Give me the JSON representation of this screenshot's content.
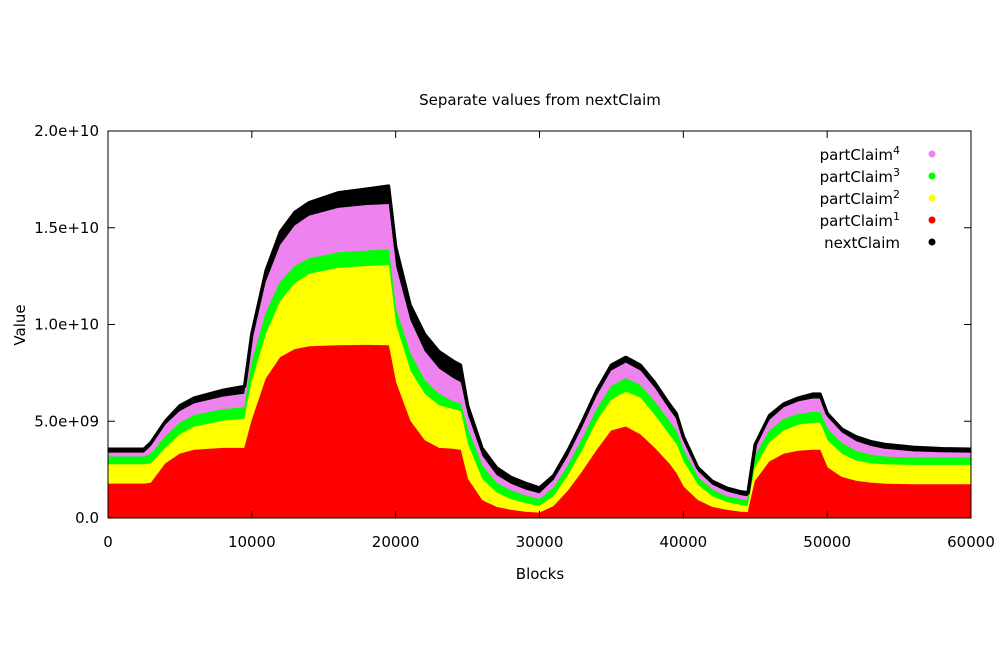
{
  "chart_data": {
    "type": "area",
    "title": "Separate values from nextClaim",
    "xlabel": "Blocks",
    "ylabel": "Value",
    "xlim": [
      0,
      60000
    ],
    "ylim": [
      0,
      20000000000
    ],
    "x_ticks": [
      {
        "value": 0,
        "label": "0"
      },
      {
        "value": 10000,
        "label": "10000"
      },
      {
        "value": 20000,
        "label": "20000"
      },
      {
        "value": 30000,
        "label": "30000"
      },
      {
        "value": 40000,
        "label": "40000"
      },
      {
        "value": 50000,
        "label": "50000"
      },
      {
        "value": 60000,
        "label": "60000"
      }
    ],
    "y_ticks": [
      {
        "value": 0,
        "label": "0.0"
      },
      {
        "value": 5000000000,
        "label": "5.0e+09"
      },
      {
        "value": 10000000000,
        "label": "1.0e+10"
      },
      {
        "value": 15000000000,
        "label": "1.5e+10"
      },
      {
        "value": 20000000000,
        "label": "2.0e+10"
      }
    ],
    "grid": false,
    "legend_position": "top-right",
    "x": [
      0,
      2500,
      3000,
      4000,
      5000,
      6000,
      8000,
      9500,
      10000,
      11000,
      12000,
      13000,
      14000,
      16000,
      18000,
      19500,
      20000,
      21000,
      22000,
      23000,
      24000,
      24500,
      25000,
      26000,
      27000,
      28000,
      29000,
      30000,
      31000,
      32000,
      33000,
      34000,
      35000,
      36000,
      37000,
      38000,
      39000,
      39500,
      40000,
      41000,
      42000,
      43000,
      44000,
      44500,
      45000,
      46000,
      47000,
      48000,
      49000,
      49500,
      50000,
      51000,
      52000,
      53000,
      54000,
      56000,
      58000,
      60000
    ],
    "series": [
      {
        "name": "nextClaim",
        "label_base": "nextClaim",
        "sup": "",
        "color": "#000000",
        "values": [
          3550000000.0,
          3550000000.0,
          3900000000.0,
          5000000000.0,
          5800000000.0,
          6200000000.0,
          6600000000.0,
          6800000000.0,
          9500000000.0,
          12800000000.0,
          14800000000.0,
          15800000000.0,
          16300000000.0,
          16800000000.0,
          17000000000.0,
          17150000000.0,
          14000000000.0,
          11000000000.0,
          9500000000.0,
          8600000000.0,
          8100000000.0,
          7900000000.0,
          5800000000.0,
          3600000000.0,
          2600000000.0,
          2100000000.0,
          1800000000.0,
          1550000000.0,
          2200000000.0,
          3500000000.0,
          5000000000.0,
          6600000000.0,
          7900000000.0,
          8300000000.0,
          7900000000.0,
          7000000000.0,
          5900000000.0,
          5400000000.0,
          4200000000.0,
          2600000000.0,
          1900000000.0,
          1550000000.0,
          1350000000.0,
          1300000000.0,
          3800000000.0,
          5300000000.0,
          5900000000.0,
          6200000000.0,
          6400000000.0,
          6400000000.0,
          5400000000.0,
          4600000000.0,
          4200000000.0,
          3950000000.0,
          3800000000.0,
          3650000000.0,
          3580000000.0,
          3550000000.0
        ]
      },
      {
        "name": "partClaim4",
        "label_base": "partClaim",
        "sup": "4",
        "color": "#ee82ee",
        "values": [
          3350000000.0,
          3350000000.0,
          3700000000.0,
          4800000000.0,
          5500000000.0,
          5900000000.0,
          6250000000.0,
          6400000000.0,
          9000000000.0,
          12200000000.0,
          14100000000.0,
          15100000000.0,
          15600000000.0,
          16000000000.0,
          16150000000.0,
          16200000000.0,
          13000000000.0,
          10200000000.0,
          8600000000.0,
          7700000000.0,
          7200000000.0,
          7000000000.0,
          5300000000.0,
          3200000000.0,
          2200000000.0,
          1750000000.0,
          1450000000.0,
          1250000000.0,
          1950000000.0,
          3200000000.0,
          4700000000.0,
          6300000000.0,
          7600000000.0,
          8000000000.0,
          7600000000.0,
          6700000000.0,
          5600000000.0,
          5100000000.0,
          3950000000.0,
          2400000000.0,
          1700000000.0,
          1350000000.0,
          1150000000.0,
          1100000000.0,
          3600000000.0,
          5050000000.0,
          5700000000.0,
          6000000000.0,
          6150000000.0,
          6150000000.0,
          5200000000.0,
          4400000000.0,
          3950000000.0,
          3700000000.0,
          3550000000.0,
          3420000000.0,
          3370000000.0,
          3350000000.0
        ]
      },
      {
        "name": "partClaim3",
        "label_base": "partClaim",
        "sup": "3",
        "color": "#00ff00",
        "values": [
          3150000000.0,
          3150000000.0,
          3300000000.0,
          4200000000.0,
          4900000000.0,
          5300000000.0,
          5600000000.0,
          5700000000.0,
          8000000000.0,
          10600000000.0,
          12200000000.0,
          13000000000.0,
          13400000000.0,
          13700000000.0,
          13800000000.0,
          13850000000.0,
          10800000000.0,
          8500000000.0,
          7100000000.0,
          6400000000.0,
          6000000000.0,
          5900000000.0,
          4600000000.0,
          2700000000.0,
          1800000000.0,
          1400000000.0,
          1150000000.0,
          950000000.0,
          1550000000.0,
          2700000000.0,
          4100000000.0,
          5600000000.0,
          6800000000.0,
          7200000000.0,
          6850000000.0,
          6000000000.0,
          5000000000.0,
          4500000000.0,
          3500000000.0,
          2100000000.0,
          1450000000.0,
          1100000000.0,
          950000000.0,
          900000000.0,
          3200000000.0,
          4500000000.0,
          5100000000.0,
          5350000000.0,
          5450000000.0,
          5450000000.0,
          4600000000.0,
          3850000000.0,
          3450000000.0,
          3250000000.0,
          3150000000.0,
          3100000000.0,
          3100000000.0,
          3100000000.0
        ]
      },
      {
        "name": "partClaim2",
        "label_base": "partClaim",
        "sup": "2",
        "color": "#ffff00",
        "values": [
          2750000000.0,
          2750000000.0,
          2800000000.0,
          3600000000.0,
          4300000000.0,
          4700000000.0,
          5000000000.0,
          5100000000.0,
          7000000000.0,
          9500000000.0,
          11200000000.0,
          12100000000.0,
          12600000000.0,
          12900000000.0,
          13000000000.0,
          13050000000.0,
          10000000000.0,
          7600000000.0,
          6400000000.0,
          5800000000.0,
          5600000000.0,
          5500000000.0,
          3800000000.0,
          2000000000.0,
          1300000000.0,
          950000000.0,
          750000000.0,
          600000000.0,
          1100000000.0,
          2200000000.0,
          3500000000.0,
          5000000000.0,
          6100000000.0,
          6500000000.0,
          6200000000.0,
          5300000000.0,
          4300000000.0,
          3800000000.0,
          2900000000.0,
          1700000000.0,
          1100000000.0,
          800000000.0,
          650000000.0,
          600000000.0,
          2600000000.0,
          3900000000.0,
          4500000000.0,
          4800000000.0,
          4900000000.0,
          4900000000.0,
          4000000000.0,
          3300000000.0,
          2950000000.0,
          2800000000.0,
          2750000000.0,
          2720000000.0,
          2720000000.0,
          2720000000.0
        ]
      },
      {
        "name": "partClaim1",
        "label_base": "partClaim",
        "sup": "1",
        "color": "#ff0000",
        "values": [
          1750000000.0,
          1750000000.0,
          1800000000.0,
          2800000000.0,
          3300000000.0,
          3500000000.0,
          3600000000.0,
          3600000000.0,
          5000000000.0,
          7200000000.0,
          8300000000.0,
          8700000000.0,
          8850000000.0,
          8900000000.0,
          8920000000.0,
          8900000000.0,
          7000000000.0,
          5000000000.0,
          4000000000.0,
          3600000000.0,
          3550000000.0,
          3500000000.0,
          2000000000.0,
          900000000.0,
          550000000.0,
          400000000.0,
          300000000.0,
          250000000.0,
          600000000.0,
          1400000000.0,
          2400000000.0,
          3500000000.0,
          4500000000.0,
          4700000000.0,
          4300000000.0,
          3600000000.0,
          2800000000.0,
          2300000000.0,
          1600000000.0,
          900000000.0,
          550000000.0,
          400000000.0,
          300000000.0,
          280000000.0,
          1900000000.0,
          2900000000.0,
          3300000000.0,
          3450000000.0,
          3500000000.0,
          3500000000.0,
          2600000000.0,
          2100000000.0,
          1900000000.0,
          1800000000.0,
          1750000000.0,
          1720000000.0,
          1720000000.0,
          1720000000.0
        ]
      }
    ]
  }
}
